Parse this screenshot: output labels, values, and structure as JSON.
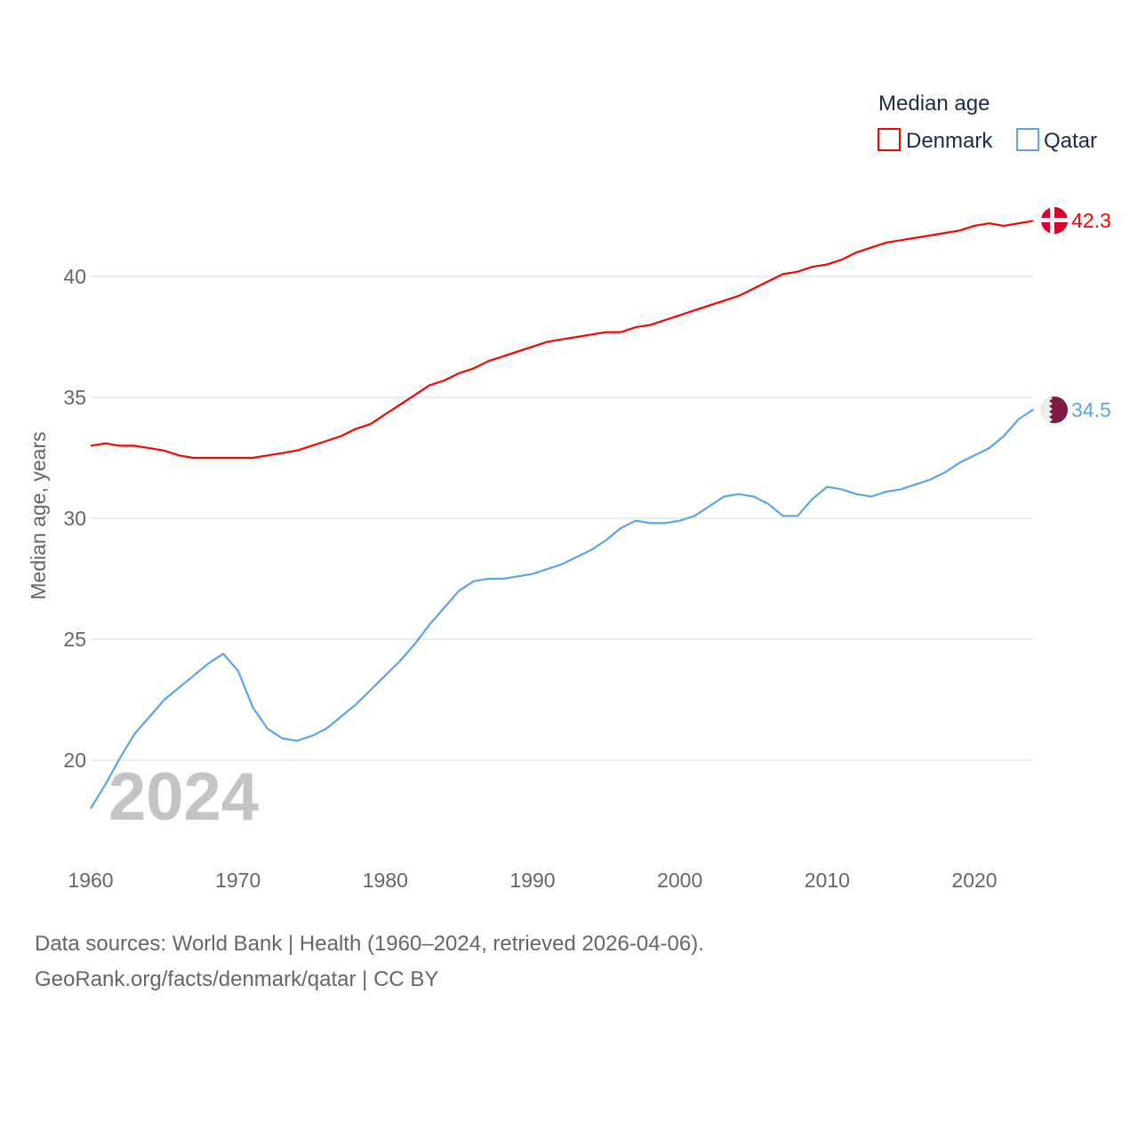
{
  "chart_data": {
    "type": "line",
    "title": "Median age",
    "xlabel": "",
    "ylabel": "Median age, years",
    "year_label": "2024",
    "xlim": [
      1960,
      2024
    ],
    "ylim": [
      18,
      44
    ],
    "x_ticks": [
      "1960",
      "1970",
      "1980",
      "1990",
      "2000",
      "2010",
      "2020"
    ],
    "y_ticks": [
      "20",
      "25",
      "30",
      "35",
      "40"
    ],
    "grid": true,
    "legend": {
      "title": "Median age",
      "placement": "top-right"
    },
    "x": [
      1960,
      1961,
      1962,
      1963,
      1964,
      1965,
      1966,
      1967,
      1968,
      1969,
      1970,
      1971,
      1972,
      1973,
      1974,
      1975,
      1976,
      1977,
      1978,
      1979,
      1980,
      1981,
      1982,
      1983,
      1984,
      1985,
      1986,
      1987,
      1988,
      1989,
      1990,
      1991,
      1992,
      1993,
      1994,
      1995,
      1996,
      1997,
      1998,
      1999,
      2000,
      2001,
      2002,
      2003,
      2004,
      2005,
      2006,
      2007,
      2008,
      2009,
      2010,
      2011,
      2012,
      2013,
      2014,
      2015,
      2016,
      2017,
      2018,
      2019,
      2020,
      2021,
      2022,
      2023,
      2024
    ],
    "series": [
      {
        "name": "Denmark",
        "color": "#ff0000",
        "end_label": "42.3",
        "flag": "denmark-flag",
        "values": [
          33.0,
          33.1,
          33.0,
          33.0,
          32.9,
          32.8,
          32.6,
          32.5,
          32.5,
          32.5,
          32.5,
          32.5,
          32.6,
          32.7,
          32.8,
          33.0,
          33.2,
          33.4,
          33.7,
          33.9,
          34.3,
          34.7,
          35.1,
          35.5,
          35.7,
          36.0,
          36.2,
          36.5,
          36.7,
          36.9,
          37.1,
          37.3,
          37.4,
          37.5,
          37.6,
          37.7,
          37.7,
          37.9,
          38.0,
          38.2,
          38.4,
          38.6,
          38.8,
          39.0,
          39.2,
          39.5,
          39.8,
          40.1,
          40.2,
          40.4,
          40.5,
          40.7,
          41.0,
          41.2,
          41.4,
          41.5,
          41.6,
          41.7,
          41.8,
          41.9,
          42.1,
          42.2,
          42.1,
          42.2,
          42.3
        ]
      },
      {
        "name": "Qatar",
        "color": "#5ba4ec",
        "end_label": "34.5",
        "flag": "qatar-flag",
        "values": [
          18.0,
          19.0,
          20.1,
          21.1,
          21.8,
          22.5,
          23.0,
          23.5,
          24.0,
          24.4,
          23.7,
          22.2,
          21.3,
          20.9,
          20.8,
          21.0,
          21.3,
          21.8,
          22.3,
          22.9,
          23.5,
          24.1,
          24.8,
          25.6,
          26.3,
          27.0,
          27.4,
          27.5,
          27.5,
          27.6,
          27.7,
          27.9,
          28.1,
          28.4,
          28.7,
          29.1,
          29.6,
          29.9,
          29.8,
          29.8,
          29.9,
          30.1,
          30.5,
          30.9,
          31.0,
          30.9,
          30.6,
          30.1,
          30.1,
          30.8,
          31.3,
          31.2,
          31.0,
          30.9,
          31.1,
          31.2,
          31.4,
          31.6,
          31.9,
          32.3,
          32.6,
          32.9,
          33.4,
          34.1,
          34.5
        ]
      }
    ]
  },
  "footer": {
    "source": "Data sources: World Bank | Health (1960–2024, retrieved 2026-04-06).",
    "credit": "GeoRank.org/facts/denmark/qatar | CC BY"
  }
}
